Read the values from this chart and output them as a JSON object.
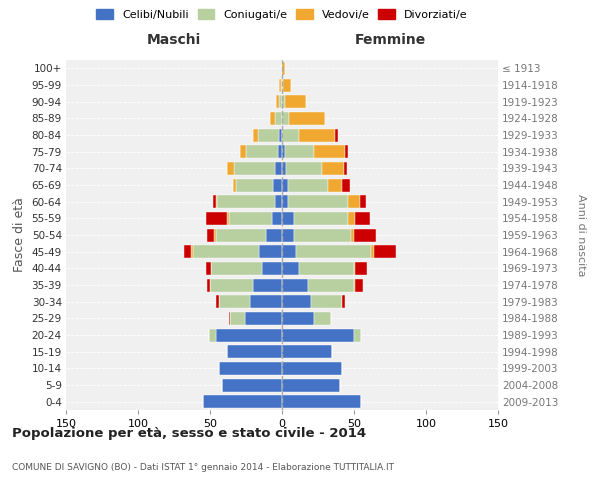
{
  "age_groups": [
    "0-4",
    "5-9",
    "10-14",
    "15-19",
    "20-24",
    "25-29",
    "30-34",
    "35-39",
    "40-44",
    "45-49",
    "50-54",
    "55-59",
    "60-64",
    "65-69",
    "70-74",
    "75-79",
    "80-84",
    "85-89",
    "90-94",
    "95-99",
    "100+"
  ],
  "birth_years": [
    "2009-2013",
    "2004-2008",
    "1999-2003",
    "1994-1998",
    "1989-1993",
    "1984-1988",
    "1979-1983",
    "1974-1978",
    "1969-1973",
    "1964-1968",
    "1959-1963",
    "1954-1958",
    "1949-1953",
    "1944-1948",
    "1939-1943",
    "1934-1938",
    "1929-1933",
    "1924-1928",
    "1919-1923",
    "1914-1918",
    "≤ 1913"
  ],
  "maschi": {
    "celibi": [
      55,
      42,
      44,
      38,
      46,
      26,
      22,
      20,
      14,
      16,
      11,
      7,
      5,
      6,
      5,
      3,
      2,
      0,
      0,
      0,
      0
    ],
    "coniugati": [
      0,
      0,
      0,
      0,
      5,
      10,
      22,
      30,
      35,
      46,
      35,
      30,
      40,
      26,
      28,
      22,
      15,
      5,
      2,
      1,
      0
    ],
    "vedovi": [
      0,
      0,
      0,
      0,
      0,
      0,
      0,
      0,
      0,
      1,
      1,
      1,
      1,
      2,
      5,
      4,
      3,
      3,
      2,
      1,
      0
    ],
    "divorziati": [
      0,
      0,
      0,
      0,
      0,
      1,
      2,
      2,
      4,
      5,
      5,
      15,
      2,
      0,
      0,
      0,
      0,
      0,
      0,
      0,
      0
    ]
  },
  "femmine": {
    "nubili": [
      55,
      40,
      42,
      35,
      50,
      22,
      20,
      18,
      12,
      10,
      8,
      8,
      4,
      4,
      3,
      2,
      0,
      0,
      0,
      0,
      0
    ],
    "coniugate": [
      0,
      0,
      0,
      0,
      5,
      12,
      22,
      32,
      38,
      52,
      40,
      38,
      42,
      28,
      25,
      20,
      12,
      5,
      2,
      1,
      0
    ],
    "vedove": [
      0,
      0,
      0,
      0,
      0,
      0,
      0,
      1,
      1,
      2,
      2,
      5,
      8,
      10,
      15,
      22,
      25,
      25,
      15,
      5,
      2
    ],
    "divorziate": [
      0,
      0,
      0,
      0,
      0,
      0,
      2,
      5,
      8,
      15,
      15,
      10,
      4,
      5,
      2,
      2,
      2,
      0,
      0,
      0,
      0
    ]
  },
  "colors": {
    "celibi": "#4472c4",
    "coniugati": "#b8cfa0",
    "vedovi": "#f0a830",
    "divorziati": "#cc0000"
  },
  "xlim": 150,
  "title": "Popolazione per età, sesso e stato civile - 2014",
  "subtitle": "COMUNE DI SAVIGNO (BO) - Dati ISTAT 1° gennaio 2014 - Elaborazione TUTTITALIA.IT",
  "ylabel": "Fasce di età",
  "ylabel_right": "Anni di nascita",
  "xlabel_left": "Maschi",
  "xlabel_right": "Femmine",
  "bg_color": "#f0f0f0",
  "legend_labels": [
    "Celibi/Nubili",
    "Coniugati/e",
    "Vedovi/e",
    "Divorziati/e"
  ]
}
